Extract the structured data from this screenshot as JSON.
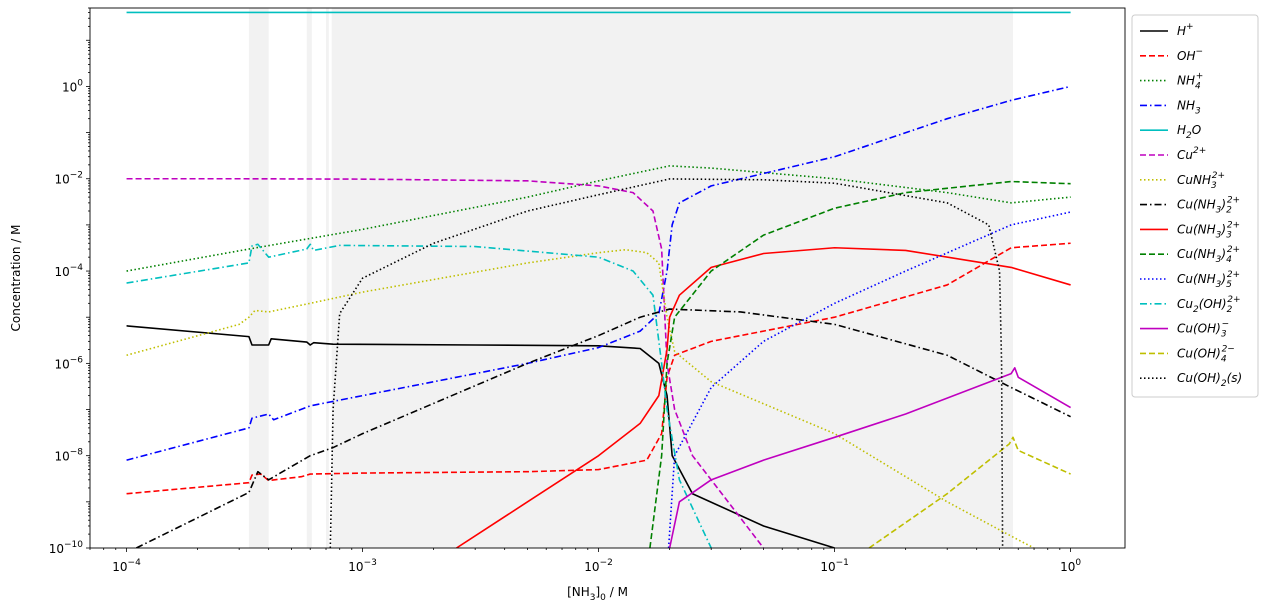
{
  "chart_data": {
    "type": "line",
    "xscale": "log",
    "yscale": "log",
    "xlabel": "[NH3]0 / M",
    "ylabel": "Concentration / M",
    "xlim": [
      7e-05,
      1.7
    ],
    "ylim": [
      1e-10,
      50
    ],
    "x_ticks": [
      {
        "exp": -4
      },
      {
        "exp": -3
      },
      {
        "exp": -2
      },
      {
        "exp": -1
      },
      {
        "exp": 0
      }
    ],
    "y_ticks": [
      {
        "exp": -10
      },
      {
        "exp": -8
      },
      {
        "exp": -6
      },
      {
        "exp": -4
      },
      {
        "exp": -2
      },
      {
        "exp": 0
      }
    ],
    "shaded_regions": [
      [
        0.00033,
        0.0004
      ],
      [
        0.00058,
        0.00061
      ],
      [
        0.0007,
        0.00072
      ],
      [
        0.00074,
        0.57
      ]
    ],
    "legend": {
      "position": "outside-right"
    },
    "series": [
      {
        "name": "H+",
        "label_base": "H",
        "sup": "+",
        "color": "#000000",
        "dash": "solid",
        "points": [
          [
            0.0001,
            6.5e-06
          ],
          [
            0.00033,
            3.8e-06
          ],
          [
            0.00034,
            2.5e-06
          ],
          [
            0.0004,
            2.5e-06
          ],
          [
            0.00041,
            3.4e-06
          ],
          [
            0.00058,
            2.9e-06
          ],
          [
            0.0006,
            2.5e-06
          ],
          [
            0.00062,
            2.8e-06
          ],
          [
            0.00075,
            2.6e-06
          ],
          [
            0.003,
            2.5e-06
          ],
          [
            0.01,
            2.4e-06
          ],
          [
            0.015,
            2.1e-06
          ],
          [
            0.018,
            1e-06
          ],
          [
            0.0195,
            2e-07
          ],
          [
            0.0205,
            1e-08
          ],
          [
            0.025,
            1.5e-09
          ],
          [
            0.05,
            3e-10
          ],
          [
            0.1,
            1e-10
          ]
        ]
      },
      {
        "name": "OH-",
        "label_base": "OH",
        "sup": "−",
        "color": "#ff0000",
        "dash": "dashed",
        "points": [
          [
            0.0001,
            1.5e-09
          ],
          [
            0.00033,
            2.6e-09
          ],
          [
            0.00034,
            3.8e-09
          ],
          [
            0.00037,
            4e-09
          ],
          [
            0.0004,
            2.9e-09
          ],
          [
            0.00055,
            3.5e-09
          ],
          [
            0.0006,
            4e-09
          ],
          [
            0.001,
            4.2e-09
          ],
          [
            0.005,
            4.5e-09
          ],
          [
            0.01,
            5e-09
          ],
          [
            0.016,
            8e-09
          ],
          [
            0.0185,
            3e-08
          ],
          [
            0.0195,
            5e-07
          ],
          [
            0.021,
            1.5e-06
          ],
          [
            0.03,
            3e-06
          ],
          [
            0.1,
            1e-05
          ],
          [
            0.3,
            5e-05
          ],
          [
            0.56,
            0.00032
          ],
          [
            1.0,
            0.0004
          ]
        ]
      },
      {
        "name": "NH4+",
        "label_base": "NH",
        "sub": "4",
        "sup": "+",
        "color": "#008000",
        "dash": "dotted",
        "points": [
          [
            0.0001,
            0.0001
          ],
          [
            0.00033,
            0.0003
          ],
          [
            0.001,
            0.0008
          ],
          [
            0.005,
            0.004
          ],
          [
            0.01,
            0.009
          ],
          [
            0.02,
            0.019
          ],
          [
            0.03,
            0.017
          ],
          [
            0.1,
            0.01
          ],
          [
            0.3,
            0.005
          ],
          [
            0.56,
            0.003
          ],
          [
            1.0,
            0.004
          ]
        ]
      },
      {
        "name": "NH3",
        "label_base": "NH",
        "sub": "3",
        "color": "#0000ff",
        "dash": "dashdot",
        "points": [
          [
            0.0001,
            8e-09
          ],
          [
            0.00033,
            4e-08
          ],
          [
            0.00034,
            6.5e-08
          ],
          [
            0.0004,
            8e-08
          ],
          [
            0.00042,
            6e-08
          ],
          [
            0.0006,
            1.2e-07
          ],
          [
            0.001,
            2e-07
          ],
          [
            0.005,
            1e-06
          ],
          [
            0.01,
            2.2e-06
          ],
          [
            0.015,
            5e-06
          ],
          [
            0.018,
            1.2e-05
          ],
          [
            0.0195,
            0.0001
          ],
          [
            0.0205,
            0.001
          ],
          [
            0.022,
            0.003
          ],
          [
            0.03,
            0.007
          ],
          [
            0.1,
            0.03
          ],
          [
            0.3,
            0.2
          ],
          [
            0.56,
            0.5
          ],
          [
            1.0,
            1.0
          ]
        ]
      },
      {
        "name": "H2O",
        "label_base": "H",
        "sub": "2",
        "label_tail": "O",
        "color": "#00bfbf",
        "dash": "solid",
        "points": [
          [
            0.0001,
            40
          ],
          [
            1.0,
            40
          ]
        ]
      },
      {
        "name": "Cu2+",
        "label_base": "Cu",
        "sup": "2+",
        "color": "#bf00bf",
        "dash": "dashed",
        "points": [
          [
            0.0001,
            0.01
          ],
          [
            0.0003,
            0.01
          ],
          [
            0.001,
            0.0098
          ],
          [
            0.005,
            0.009
          ],
          [
            0.01,
            0.007
          ],
          [
            0.014,
            0.005
          ],
          [
            0.017,
            0.002
          ],
          [
            0.0185,
            0.0003
          ],
          [
            0.0195,
            1e-06
          ],
          [
            0.021,
            1e-07
          ],
          [
            0.025,
            1e-08
          ],
          [
            0.03,
            3e-09
          ],
          [
            0.05,
            1e-10
          ]
        ]
      },
      {
        "name": "CuNH3 2+",
        "label_base": "CuNH",
        "sub": "3",
        "sup": "2+",
        "color": "#bfbf00",
        "dash": "dotted",
        "points": [
          [
            0.0001,
            1.5e-06
          ],
          [
            0.0003,
            7e-06
          ],
          [
            0.00033,
            1e-05
          ],
          [
            0.00035,
            1.4e-05
          ],
          [
            0.0004,
            1.3e-05
          ],
          [
            0.0006,
            2e-05
          ],
          [
            0.001,
            3.5e-05
          ],
          [
            0.005,
            0.00015
          ],
          [
            0.01,
            0.00025
          ],
          [
            0.013,
            0.00029
          ],
          [
            0.016,
            0.00025
          ],
          [
            0.018,
            0.00015
          ],
          [
            0.0195,
            1e-05
          ],
          [
            0.021,
            1.8e-06
          ],
          [
            0.03,
            4e-07
          ],
          [
            0.1,
            3e-08
          ],
          [
            0.3,
            1e-09
          ],
          [
            0.6,
            1.5e-10
          ],
          [
            0.7,
            1e-10
          ]
        ]
      },
      {
        "name": "Cu(NH3)2 2+",
        "label_base": "Cu(NH",
        "sub": "3",
        "label_tail": ")",
        "sub2": "2",
        "sup": "2+",
        "color": "#000000",
        "dash": "dashdot",
        "points": [
          [
            0.00011,
            1e-10
          ],
          [
            0.00033,
            1.6e-09
          ],
          [
            0.00036,
            4.5e-09
          ],
          [
            0.0004,
            3e-09
          ],
          [
            0.0006,
            1e-08
          ],
          [
            0.00075,
            1.5e-08
          ],
          [
            0.001,
            3e-08
          ],
          [
            0.005,
            1e-06
          ],
          [
            0.01,
            4e-06
          ],
          [
            0.015,
            1e-05
          ],
          [
            0.02,
            1.5e-05
          ],
          [
            0.04,
            1.3e-05
          ],
          [
            0.1,
            7e-06
          ],
          [
            0.3,
            1.5e-06
          ],
          [
            0.56,
            3e-07
          ],
          [
            1.0,
            7e-08
          ]
        ]
      },
      {
        "name": "Cu(NH3)3 2+",
        "label_base": "Cu(NH",
        "sub": "3",
        "label_tail": ")",
        "sub2": "3",
        "sup": "2+",
        "color": "#ff0000",
        "dash": "solid",
        "points": [
          [
            0.0025,
            1e-10
          ],
          [
            0.005,
            1e-09
          ],
          [
            0.01,
            1e-08
          ],
          [
            0.015,
            5e-08
          ],
          [
            0.018,
            2e-07
          ],
          [
            0.0195,
            2e-06
          ],
          [
            0.02,
            1e-05
          ],
          [
            0.022,
            3e-05
          ],
          [
            0.03,
            0.00012
          ],
          [
            0.05,
            0.00024
          ],
          [
            0.1,
            0.00032
          ],
          [
            0.2,
            0.00028
          ],
          [
            0.56,
            0.00012
          ],
          [
            1.0,
            5e-05
          ]
        ]
      },
      {
        "name": "Cu(NH3)4 2+",
        "label_base": "Cu(NH",
        "sub": "3",
        "label_tail": ")",
        "sub2": "4",
        "sup": "2+",
        "color": "#008000",
        "dash": "dashed",
        "points": [
          [
            0.0165,
            1e-10
          ],
          [
            0.0185,
            1e-08
          ],
          [
            0.0195,
            1e-06
          ],
          [
            0.021,
            1e-05
          ],
          [
            0.03,
            0.0001
          ],
          [
            0.05,
            0.0006
          ],
          [
            0.1,
            0.0023
          ],
          [
            0.2,
            0.005
          ],
          [
            0.56,
            0.0087
          ],
          [
            1.0,
            0.0078
          ]
        ]
      },
      {
        "name": "Cu(NH3)5 2+",
        "label_base": "Cu(NH",
        "sub": "3",
        "label_tail": ")",
        "sub2": "5",
        "sup": "2+",
        "color": "#0000ff",
        "dash": "dotted",
        "points": [
          [
            0.0198,
            1e-10
          ],
          [
            0.021,
            1e-08
          ],
          [
            0.03,
            3e-07
          ],
          [
            0.05,
            3e-06
          ],
          [
            0.1,
            2e-05
          ],
          [
            0.2,
            0.0001
          ],
          [
            0.56,
            0.001
          ],
          [
            1.0,
            0.0019
          ]
        ]
      },
      {
        "name": "Cu2(OH)2 2+",
        "label_base": "Cu",
        "sub": "2",
        "label_tail": "(OH)",
        "sub2": "2",
        "sup": "2+",
        "color": "#00bfbf",
        "dash": "dashdot",
        "points": [
          [
            0.0001,
            5.5e-05
          ],
          [
            0.00033,
            0.00015
          ],
          [
            0.00034,
            0.00035
          ],
          [
            0.00036,
            0.00038
          ],
          [
            0.0004,
            0.0002
          ],
          [
            0.00058,
            0.0003
          ],
          [
            0.0006,
            0.00038
          ],
          [
            0.00062,
            0.00028
          ],
          [
            0.0008,
            0.00036
          ],
          [
            0.003,
            0.00034
          ],
          [
            0.01,
            0.0002
          ],
          [
            0.014,
            0.0001
          ],
          [
            0.017,
            3e-05
          ],
          [
            0.0185,
            1e-06
          ],
          [
            0.0195,
            1e-07
          ],
          [
            0.022,
            3e-09
          ],
          [
            0.03,
            1e-10
          ]
        ]
      },
      {
        "name": "Cu(OH)3-",
        "label_base": "Cu(OH)",
        "sub": "3",
        "sup": "−",
        "color": "#bf00bf",
        "dash": "solid",
        "points": [
          [
            0.02,
            1e-10
          ],
          [
            0.022,
            1e-09
          ],
          [
            0.03,
            3e-09
          ],
          [
            0.05,
            8e-09
          ],
          [
            0.1,
            2.5e-08
          ],
          [
            0.2,
            8e-08
          ],
          [
            0.56,
            6e-07
          ],
          [
            0.58,
            8e-07
          ],
          [
            0.6,
            5e-07
          ],
          [
            1.0,
            1.1e-07
          ]
        ]
      },
      {
        "name": "Cu(OH)4 2-",
        "label_base": "Cu(OH)",
        "sub": "4",
        "sup": "2−",
        "color": "#bfbf00",
        "dash": "dashed",
        "points": [
          [
            0.14,
            1e-10
          ],
          [
            0.3,
            1.5e-09
          ],
          [
            0.55,
            1.8e-08
          ],
          [
            0.57,
            2.5e-08
          ],
          [
            0.6,
            1.3e-08
          ],
          [
            1.0,
            4e-09
          ]
        ]
      },
      {
        "name": "Cu(OH)2(s)",
        "label_base": "Cu(OH)",
        "sub": "2",
        "label_tail": "(s)",
        "color": "#000000",
        "dash": "dotted",
        "points": [
          [
            0.00073,
            1e-10
          ],
          [
            0.00075,
            1e-07
          ],
          [
            0.0008,
            1.2e-05
          ],
          [
            0.001,
            7e-05
          ],
          [
            0.002,
            0.0004
          ],
          [
            0.005,
            0.002
          ],
          [
            0.01,
            0.0045
          ],
          [
            0.02,
            0.0099
          ],
          [
            0.05,
            0.0095
          ],
          [
            0.1,
            0.008
          ],
          [
            0.3,
            0.003
          ],
          [
            0.45,
            0.001
          ],
          [
            0.5,
            0.0001
          ],
          [
            0.51,
            1e-06
          ],
          [
            0.515,
            1e-10
          ]
        ]
      }
    ]
  }
}
